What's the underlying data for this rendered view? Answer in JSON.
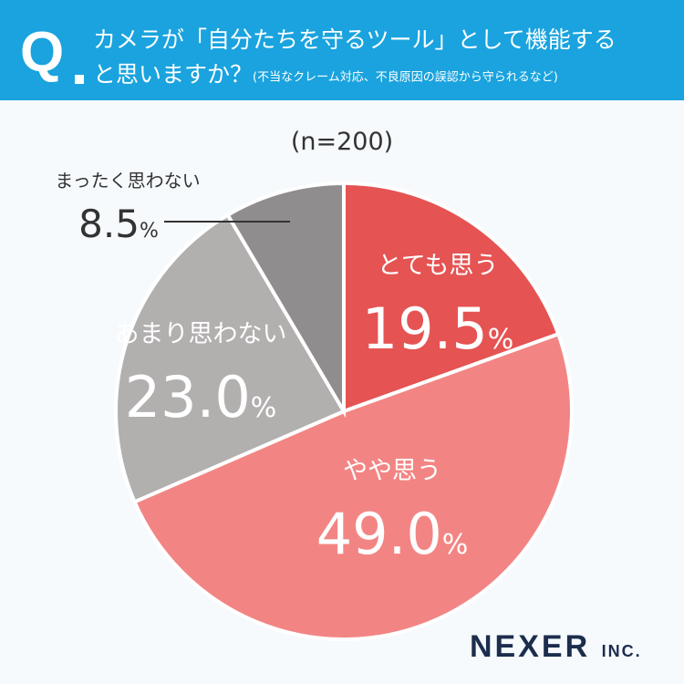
{
  "header": {
    "q": "Q",
    "line1": "カメラが「自分たちを守るツール」として機能する",
    "line2": "と思いますか？",
    "line2_note": "(不当なクレーム対応、不良原因の誤認から守られるなど)"
  },
  "chart_data": {
    "type": "pie",
    "subtitle": "(n=200)",
    "slices": [
      {
        "label": "とても思う",
        "value": 19.5,
        "display": "19.5",
        "color": "#e55353"
      },
      {
        "label": "やや思う",
        "value": 49.0,
        "display": "49.0",
        "color": "#f28584"
      },
      {
        "label": "あまり思わない",
        "value": 23.0,
        "display": "23.0",
        "color": "#b2afaf"
      },
      {
        "label": "まったく思わない",
        "value": 8.5,
        "display": "8.5",
        "color": "#8f8d8d"
      }
    ],
    "unit": "%"
  },
  "logo": {
    "main": "NEXER",
    "sub": "INC."
  }
}
